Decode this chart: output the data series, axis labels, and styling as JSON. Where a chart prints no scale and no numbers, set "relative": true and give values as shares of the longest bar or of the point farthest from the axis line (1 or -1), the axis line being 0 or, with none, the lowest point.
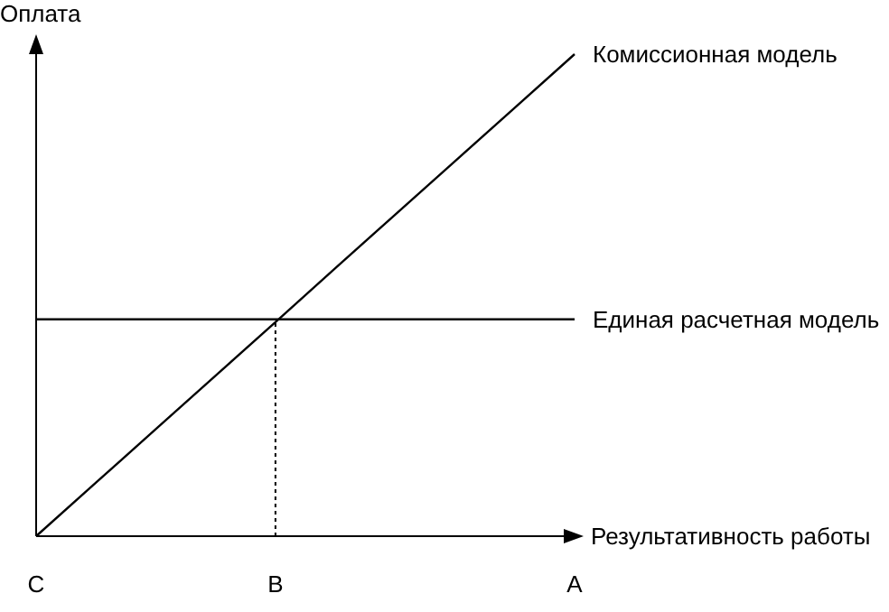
{
  "chart_data": {
    "type": "line",
    "relative": true,
    "xlabel": "Результативность работы",
    "ylabel": "Оплата",
    "categories": [
      "C",
      null,
      null,
      null,
      "B",
      null,
      null,
      null,
      null,
      "A"
    ],
    "series": [
      {
        "name": "Комиссионная модель",
        "color": "#000000",
        "values": [
          0,
          0.111,
          0.222,
          0.333,
          0.444,
          0.556,
          0.667,
          0.778,
          0.889,
          1
        ]
      },
      {
        "name": "Единая расчетная модель",
        "color": "#000000",
        "values": [
          0.45,
          0.45,
          0.45,
          0.45,
          0.45,
          0.45,
          0.45,
          0.45,
          0.45,
          0.45
        ]
      }
    ],
    "ref_lines": [
      {
        "axis": "x",
        "value": "B",
        "line_style": "dotted",
        "color": "#000000"
      }
    ],
    "grid": false,
    "legend": false,
    "marker": "none",
    "line_style": "solid"
  }
}
